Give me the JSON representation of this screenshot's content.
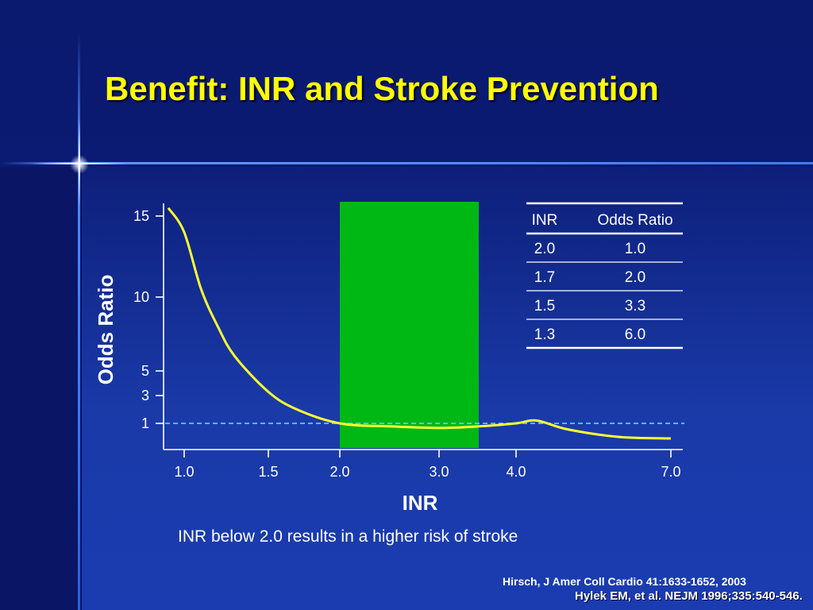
{
  "slide": {
    "title": "Benefit:  INR and Stroke Prevention",
    "caption": "INR below 2.0 results in a higher risk of stroke",
    "references": [
      "Hirsch, J Amer Coll Cardio 41:1633-1652, 2003",
      "Hylek EM, et al. NEJM 1996;335:540-546."
    ]
  },
  "colors": {
    "title": "#ffff00",
    "curve": "#ffff33",
    "band": "#00b814",
    "reference_line": "#5fc8ff",
    "text": "#ffffff"
  },
  "chart_data": {
    "type": "line",
    "xlabel": "INR",
    "ylabel": "Odds Ratio",
    "x_ticks": [
      "1.0",
      "1.5",
      "2.0",
      "3.0",
      "4.0",
      "7.0"
    ],
    "y_ticks": [
      "1",
      "3",
      "5",
      "10",
      "15"
    ],
    "reference_line": {
      "y": 1,
      "style": "dashed"
    },
    "highlight_band": {
      "x_from": "2.0",
      "x_to": "3.5",
      "color": "#00b814"
    },
    "series": [
      {
        "points": [
          {
            "x": 0.9,
            "y": 15.6
          },
          {
            "x": 1.0,
            "y": 14.0
          },
          {
            "x": 1.1,
            "y": 10.5
          },
          {
            "x": 1.2,
            "y": 8.0
          },
          {
            "x": 1.3,
            "y": 6.0
          },
          {
            "x": 1.5,
            "y": 3.3
          },
          {
            "x": 1.7,
            "y": 2.0
          },
          {
            "x": 2.0,
            "y": 1.0
          },
          {
            "x": 2.5,
            "y": 0.8
          },
          {
            "x": 3.0,
            "y": 0.7
          },
          {
            "x": 3.5,
            "y": 0.8
          },
          {
            "x": 4.0,
            "y": 1.0
          },
          {
            "x": 4.4,
            "y": 1.2
          },
          {
            "x": 5.0,
            "y": 0.6
          },
          {
            "x": 6.0,
            "y": 0.1
          },
          {
            "x": 7.0,
            "y": 0.0
          }
        ]
      }
    ],
    "table": {
      "headers": [
        "INR",
        "Odds Ratio"
      ],
      "rows": [
        [
          "2.0",
          "1.0"
        ],
        [
          "1.7",
          "2.0"
        ],
        [
          "1.5",
          "3.3"
        ],
        [
          "1.3",
          "6.0"
        ]
      ]
    }
  }
}
